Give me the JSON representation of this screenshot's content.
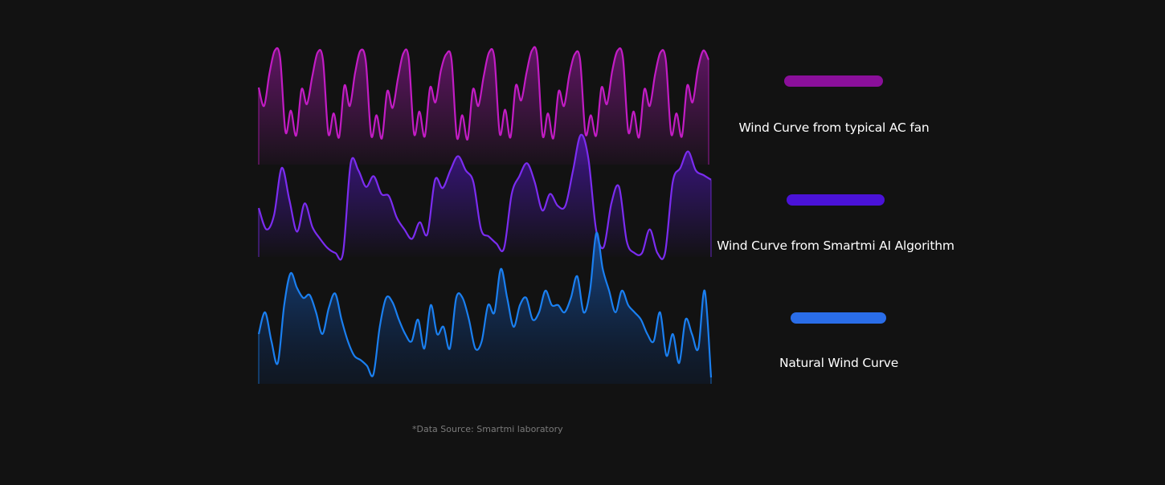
{
  "chart_data": {
    "type": "area",
    "title": "",
    "xlabel": "",
    "ylabel": "",
    "grid": false,
    "legend_placement": "right",
    "series": [
      {
        "name": "Wind Curve from typical AC fan",
        "color": "#c21cc4",
        "legend_color": "#8a0f9a",
        "values": [
          60,
          40,
          75,
          100,
          92,
          12,
          35,
          8,
          58,
          42,
          72,
          98,
          90,
          10,
          32,
          6,
          62,
          40,
          76,
          100,
          88,
          8,
          30,
          5,
          56,
          38,
          70,
          97,
          92,
          10,
          34,
          7,
          60,
          44,
          78,
          96,
          90,
          6,
          30,
          4,
          58,
          40,
          72,
          98,
          92,
          10,
          36,
          6,
          62,
          46,
          76,
          100,
          94,
          8,
          32,
          5,
          56,
          40,
          74,
          96,
          90,
          10,
          30,
          8,
          60,
          42,
          78,
          100,
          92,
          12,
          34,
          6,
          58,
          40,
          74,
          98,
          90,
          10,
          32,
          7,
          62,
          44,
          80,
          100,
          90
        ]
      },
      {
        "name": "Wind Curve from Smartmi AI Algorithm",
        "color": "#7b2cf0",
        "legend_color": "#4a12d8",
        "values": [
          38,
          20,
          32,
          72,
          45,
          18,
          42,
          22,
          12,
          4,
          0,
          0,
          76,
          70,
          56,
          65,
          50,
          48,
          30,
          20,
          12,
          26,
          16,
          62,
          55,
          70,
          82,
          70,
          60,
          20,
          14,
          8,
          4,
          50,
          65,
          76,
          60,
          36,
          50,
          40,
          40,
          70,
          100,
          80,
          20,
          5,
          42,
          56,
          10,
          0,
          0,
          20,
          0,
          0,
          60,
          72,
          86,
          70,
          66,
          62
        ]
      },
      {
        "name": "Natural Wind Curve",
        "color": "#1a7ff0",
        "legend_color": "#2a6de8",
        "values": [
          30,
          45,
          25,
          10,
          50,
          72,
          62,
          55,
          57,
          45,
          30,
          48,
          58,
          40,
          25,
          15,
          12,
          8,
          2,
          35,
          55,
          52,
          40,
          30,
          25,
          40,
          20,
          50,
          30,
          35,
          20,
          55,
          55,
          40,
          20,
          25,
          50,
          45,
          75,
          55,
          35,
          50,
          55,
          40,
          45,
          60,
          50,
          50,
          45,
          55,
          70,
          45,
          60,
          100,
          75,
          60,
          45,
          60,
          50,
          45,
          40,
          30,
          25,
          45,
          15,
          30,
          10,
          40,
          30,
          20,
          60,
          0
        ]
      }
    ]
  },
  "legend": [
    {
      "label": "Wind Curve from typical AC fan"
    },
    {
      "label": "Wind Curve from Smartmi AI Algorithm"
    },
    {
      "label": "Natural Wind Curve"
    }
  ],
  "footnote": "*Data Source: Smartmi laboratory"
}
